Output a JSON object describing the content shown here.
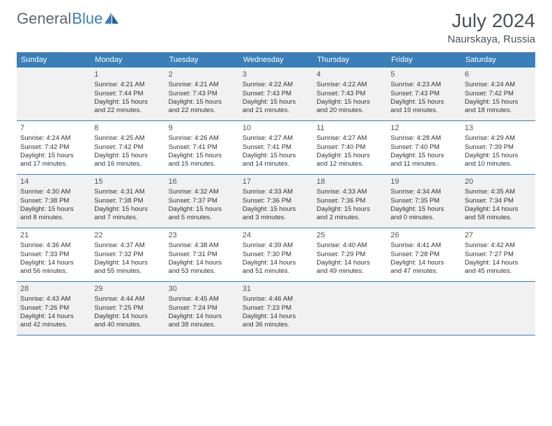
{
  "brand": {
    "part1": "General",
    "part2": "Blue"
  },
  "colors": {
    "accent": "#3a7fb8",
    "shaded": "#f1f1f1",
    "text": "#333333",
    "header_text": "#4a545c",
    "white": "#ffffff"
  },
  "title": "July 2024",
  "location": "Naurskaya, Russia",
  "days_of_week": [
    "Sunday",
    "Monday",
    "Tuesday",
    "Wednesday",
    "Thursday",
    "Friday",
    "Saturday"
  ],
  "weeks": [
    [
      {
        "n": "",
        "empty": true
      },
      {
        "n": "1",
        "sr": "Sunrise: 4:21 AM",
        "ss": "Sunset: 7:44 PM",
        "dl1": "Daylight: 15 hours",
        "dl2": "and 22 minutes."
      },
      {
        "n": "2",
        "sr": "Sunrise: 4:21 AM",
        "ss": "Sunset: 7:43 PM",
        "dl1": "Daylight: 15 hours",
        "dl2": "and 22 minutes."
      },
      {
        "n": "3",
        "sr": "Sunrise: 4:22 AM",
        "ss": "Sunset: 7:43 PM",
        "dl1": "Daylight: 15 hours",
        "dl2": "and 21 minutes."
      },
      {
        "n": "4",
        "sr": "Sunrise: 4:22 AM",
        "ss": "Sunset: 7:43 PM",
        "dl1": "Daylight: 15 hours",
        "dl2": "and 20 minutes."
      },
      {
        "n": "5",
        "sr": "Sunrise: 4:23 AM",
        "ss": "Sunset: 7:43 PM",
        "dl1": "Daylight: 15 hours",
        "dl2": "and 19 minutes."
      },
      {
        "n": "6",
        "sr": "Sunrise: 4:24 AM",
        "ss": "Sunset: 7:42 PM",
        "dl1": "Daylight: 15 hours",
        "dl2": "and 18 minutes."
      }
    ],
    [
      {
        "n": "7",
        "sr": "Sunrise: 4:24 AM",
        "ss": "Sunset: 7:42 PM",
        "dl1": "Daylight: 15 hours",
        "dl2": "and 17 minutes."
      },
      {
        "n": "8",
        "sr": "Sunrise: 4:25 AM",
        "ss": "Sunset: 7:42 PM",
        "dl1": "Daylight: 15 hours",
        "dl2": "and 16 minutes."
      },
      {
        "n": "9",
        "sr": "Sunrise: 4:26 AM",
        "ss": "Sunset: 7:41 PM",
        "dl1": "Daylight: 15 hours",
        "dl2": "and 15 minutes."
      },
      {
        "n": "10",
        "sr": "Sunrise: 4:27 AM",
        "ss": "Sunset: 7:41 PM",
        "dl1": "Daylight: 15 hours",
        "dl2": "and 14 minutes."
      },
      {
        "n": "11",
        "sr": "Sunrise: 4:27 AM",
        "ss": "Sunset: 7:40 PM",
        "dl1": "Daylight: 15 hours",
        "dl2": "and 12 minutes."
      },
      {
        "n": "12",
        "sr": "Sunrise: 4:28 AM",
        "ss": "Sunset: 7:40 PM",
        "dl1": "Daylight: 15 hours",
        "dl2": "and 11 minutes."
      },
      {
        "n": "13",
        "sr": "Sunrise: 4:29 AM",
        "ss": "Sunset: 7:39 PM",
        "dl1": "Daylight: 15 hours",
        "dl2": "and 10 minutes."
      }
    ],
    [
      {
        "n": "14",
        "sr": "Sunrise: 4:30 AM",
        "ss": "Sunset: 7:38 PM",
        "dl1": "Daylight: 15 hours",
        "dl2": "and 8 minutes."
      },
      {
        "n": "15",
        "sr": "Sunrise: 4:31 AM",
        "ss": "Sunset: 7:38 PM",
        "dl1": "Daylight: 15 hours",
        "dl2": "and 7 minutes."
      },
      {
        "n": "16",
        "sr": "Sunrise: 4:32 AM",
        "ss": "Sunset: 7:37 PM",
        "dl1": "Daylight: 15 hours",
        "dl2": "and 5 minutes."
      },
      {
        "n": "17",
        "sr": "Sunrise: 4:33 AM",
        "ss": "Sunset: 7:36 PM",
        "dl1": "Daylight: 15 hours",
        "dl2": "and 3 minutes."
      },
      {
        "n": "18",
        "sr": "Sunrise: 4:33 AM",
        "ss": "Sunset: 7:36 PM",
        "dl1": "Daylight: 15 hours",
        "dl2": "and 2 minutes."
      },
      {
        "n": "19",
        "sr": "Sunrise: 4:34 AM",
        "ss": "Sunset: 7:35 PM",
        "dl1": "Daylight: 15 hours",
        "dl2": "and 0 minutes."
      },
      {
        "n": "20",
        "sr": "Sunrise: 4:35 AM",
        "ss": "Sunset: 7:34 PM",
        "dl1": "Daylight: 14 hours",
        "dl2": "and 58 minutes."
      }
    ],
    [
      {
        "n": "21",
        "sr": "Sunrise: 4:36 AM",
        "ss": "Sunset: 7:33 PM",
        "dl1": "Daylight: 14 hours",
        "dl2": "and 56 minutes."
      },
      {
        "n": "22",
        "sr": "Sunrise: 4:37 AM",
        "ss": "Sunset: 7:32 PM",
        "dl1": "Daylight: 14 hours",
        "dl2": "and 55 minutes."
      },
      {
        "n": "23",
        "sr": "Sunrise: 4:38 AM",
        "ss": "Sunset: 7:31 PM",
        "dl1": "Daylight: 14 hours",
        "dl2": "and 53 minutes."
      },
      {
        "n": "24",
        "sr": "Sunrise: 4:39 AM",
        "ss": "Sunset: 7:30 PM",
        "dl1": "Daylight: 14 hours",
        "dl2": "and 51 minutes."
      },
      {
        "n": "25",
        "sr": "Sunrise: 4:40 AM",
        "ss": "Sunset: 7:29 PM",
        "dl1": "Daylight: 14 hours",
        "dl2": "and 49 minutes."
      },
      {
        "n": "26",
        "sr": "Sunrise: 4:41 AM",
        "ss": "Sunset: 7:28 PM",
        "dl1": "Daylight: 14 hours",
        "dl2": "and 47 minutes."
      },
      {
        "n": "27",
        "sr": "Sunrise: 4:42 AM",
        "ss": "Sunset: 7:27 PM",
        "dl1": "Daylight: 14 hours",
        "dl2": "and 45 minutes."
      }
    ],
    [
      {
        "n": "28",
        "sr": "Sunrise: 4:43 AM",
        "ss": "Sunset: 7:26 PM",
        "dl1": "Daylight: 14 hours",
        "dl2": "and 42 minutes."
      },
      {
        "n": "29",
        "sr": "Sunrise: 4:44 AM",
        "ss": "Sunset: 7:25 PM",
        "dl1": "Daylight: 14 hours",
        "dl2": "and 40 minutes."
      },
      {
        "n": "30",
        "sr": "Sunrise: 4:45 AM",
        "ss": "Sunset: 7:24 PM",
        "dl1": "Daylight: 14 hours",
        "dl2": "and 38 minutes."
      },
      {
        "n": "31",
        "sr": "Sunrise: 4:46 AM",
        "ss": "Sunset: 7:23 PM",
        "dl1": "Daylight: 14 hours",
        "dl2": "and 36 minutes."
      },
      {
        "n": "",
        "empty": true
      },
      {
        "n": "",
        "empty": true
      },
      {
        "n": "",
        "empty": true
      }
    ]
  ]
}
